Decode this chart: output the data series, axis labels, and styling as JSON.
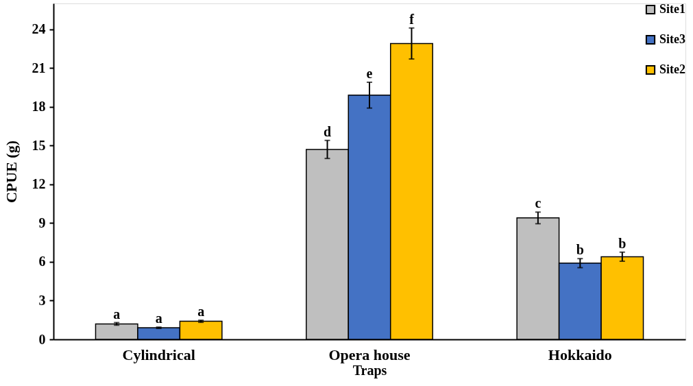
{
  "chart_data": {
    "type": "bar",
    "xlabel": "Traps",
    "ylabel": "CPUE (g)",
    "categories": [
      "Cylindrical",
      "Opera house",
      "Hokkaido"
    ],
    "series": [
      {
        "name": "Site1",
        "color": "#bfbfbf",
        "values": [
          1.2,
          14.7,
          9.4
        ],
        "errors": [
          0.1,
          0.7,
          0.45
        ],
        "value_labels": [
          "a",
          "d",
          "c"
        ]
      },
      {
        "name": "Site3",
        "color": "#4472c4",
        "values": [
          0.9,
          18.9,
          5.9
        ],
        "errors": [
          0.05,
          1.0,
          0.35
        ],
        "value_labels": [
          "a",
          "e",
          "b"
        ]
      },
      {
        "name": "Site2",
        "color": "#ffc000",
        "values": [
          1.4,
          22.9,
          6.4
        ],
        "errors": [
          0.08,
          1.2,
          0.35
        ],
        "value_labels": [
          "a",
          "f",
          "b"
        ]
      }
    ],
    "ylim": [
      0,
      26
    ],
    "yticks": [
      0,
      3,
      6,
      9,
      12,
      15,
      18,
      21,
      24
    ],
    "grid": false,
    "legend": "top right"
  }
}
